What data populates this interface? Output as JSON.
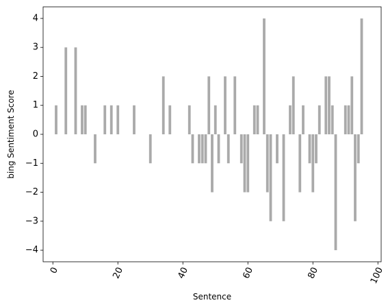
{
  "chart_data": {
    "type": "bar",
    "xlabel": "Sentence",
    "ylabel": "bing Sentiment Score",
    "xlim": [
      -3,
      101
    ],
    "ylim": [
      -4.4,
      4.4
    ],
    "x_ticks": [
      0,
      20,
      40,
      60,
      80,
      100
    ],
    "x_tick_labels": [
      "0",
      "20",
      "40",
      "60",
      "80",
      "100"
    ],
    "x_tick_rotation_deg": 65,
    "y_ticks": [
      -4,
      -3,
      -2,
      -1,
      0,
      1,
      2,
      3,
      4
    ],
    "y_tick_labels": [
      "−4",
      "−3",
      "−2",
      "−1",
      "0",
      "1",
      "2",
      "3",
      "4"
    ],
    "bar_color": "#aaaaaa",
    "grid": false,
    "points": [
      {
        "x": 1,
        "y": 1
      },
      {
        "x": 4,
        "y": 3
      },
      {
        "x": 7,
        "y": 3
      },
      {
        "x": 9,
        "y": 1
      },
      {
        "x": 10,
        "y": 1
      },
      {
        "x": 13,
        "y": -1
      },
      {
        "x": 16,
        "y": 1
      },
      {
        "x": 18,
        "y": 1
      },
      {
        "x": 20,
        "y": 1
      },
      {
        "x": 25,
        "y": 1
      },
      {
        "x": 30,
        "y": -1
      },
      {
        "x": 34,
        "y": 2
      },
      {
        "x": 36,
        "y": 1
      },
      {
        "x": 42,
        "y": 1
      },
      {
        "x": 43,
        "y": -1
      },
      {
        "x": 45,
        "y": -1
      },
      {
        "x": 46,
        "y": -1
      },
      {
        "x": 47,
        "y": -1
      },
      {
        "x": 48,
        "y": 2
      },
      {
        "x": 49,
        "y": -2
      },
      {
        "x": 50,
        "y": 1
      },
      {
        "x": 51,
        "y": -1
      },
      {
        "x": 53,
        "y": 2
      },
      {
        "x": 54,
        "y": -1
      },
      {
        "x": 56,
        "y": 2
      },
      {
        "x": 58,
        "y": -1
      },
      {
        "x": 59,
        "y": -2
      },
      {
        "x": 60,
        "y": -2
      },
      {
        "x": 62,
        "y": 1
      },
      {
        "x": 63,
        "y": 1
      },
      {
        "x": 65,
        "y": 4
      },
      {
        "x": 66,
        "y": -2
      },
      {
        "x": 67,
        "y": -3
      },
      {
        "x": 69,
        "y": -1
      },
      {
        "x": 71,
        "y": -3
      },
      {
        "x": 73,
        "y": 1
      },
      {
        "x": 74,
        "y": 2
      },
      {
        "x": 76,
        "y": -2
      },
      {
        "x": 77,
        "y": 1
      },
      {
        "x": 79,
        "y": -1
      },
      {
        "x": 80,
        "y": -2
      },
      {
        "x": 81,
        "y": -1
      },
      {
        "x": 82,
        "y": 1
      },
      {
        "x": 84,
        "y": 2
      },
      {
        "x": 85,
        "y": 2
      },
      {
        "x": 86,
        "y": 1
      },
      {
        "x": 87,
        "y": -4
      },
      {
        "x": 90,
        "y": 1
      },
      {
        "x": 91,
        "y": 1
      },
      {
        "x": 92,
        "y": 2
      },
      {
        "x": 93,
        "y": -3
      },
      {
        "x": 94,
        "y": -1
      },
      {
        "x": 95,
        "y": 4
      }
    ]
  }
}
